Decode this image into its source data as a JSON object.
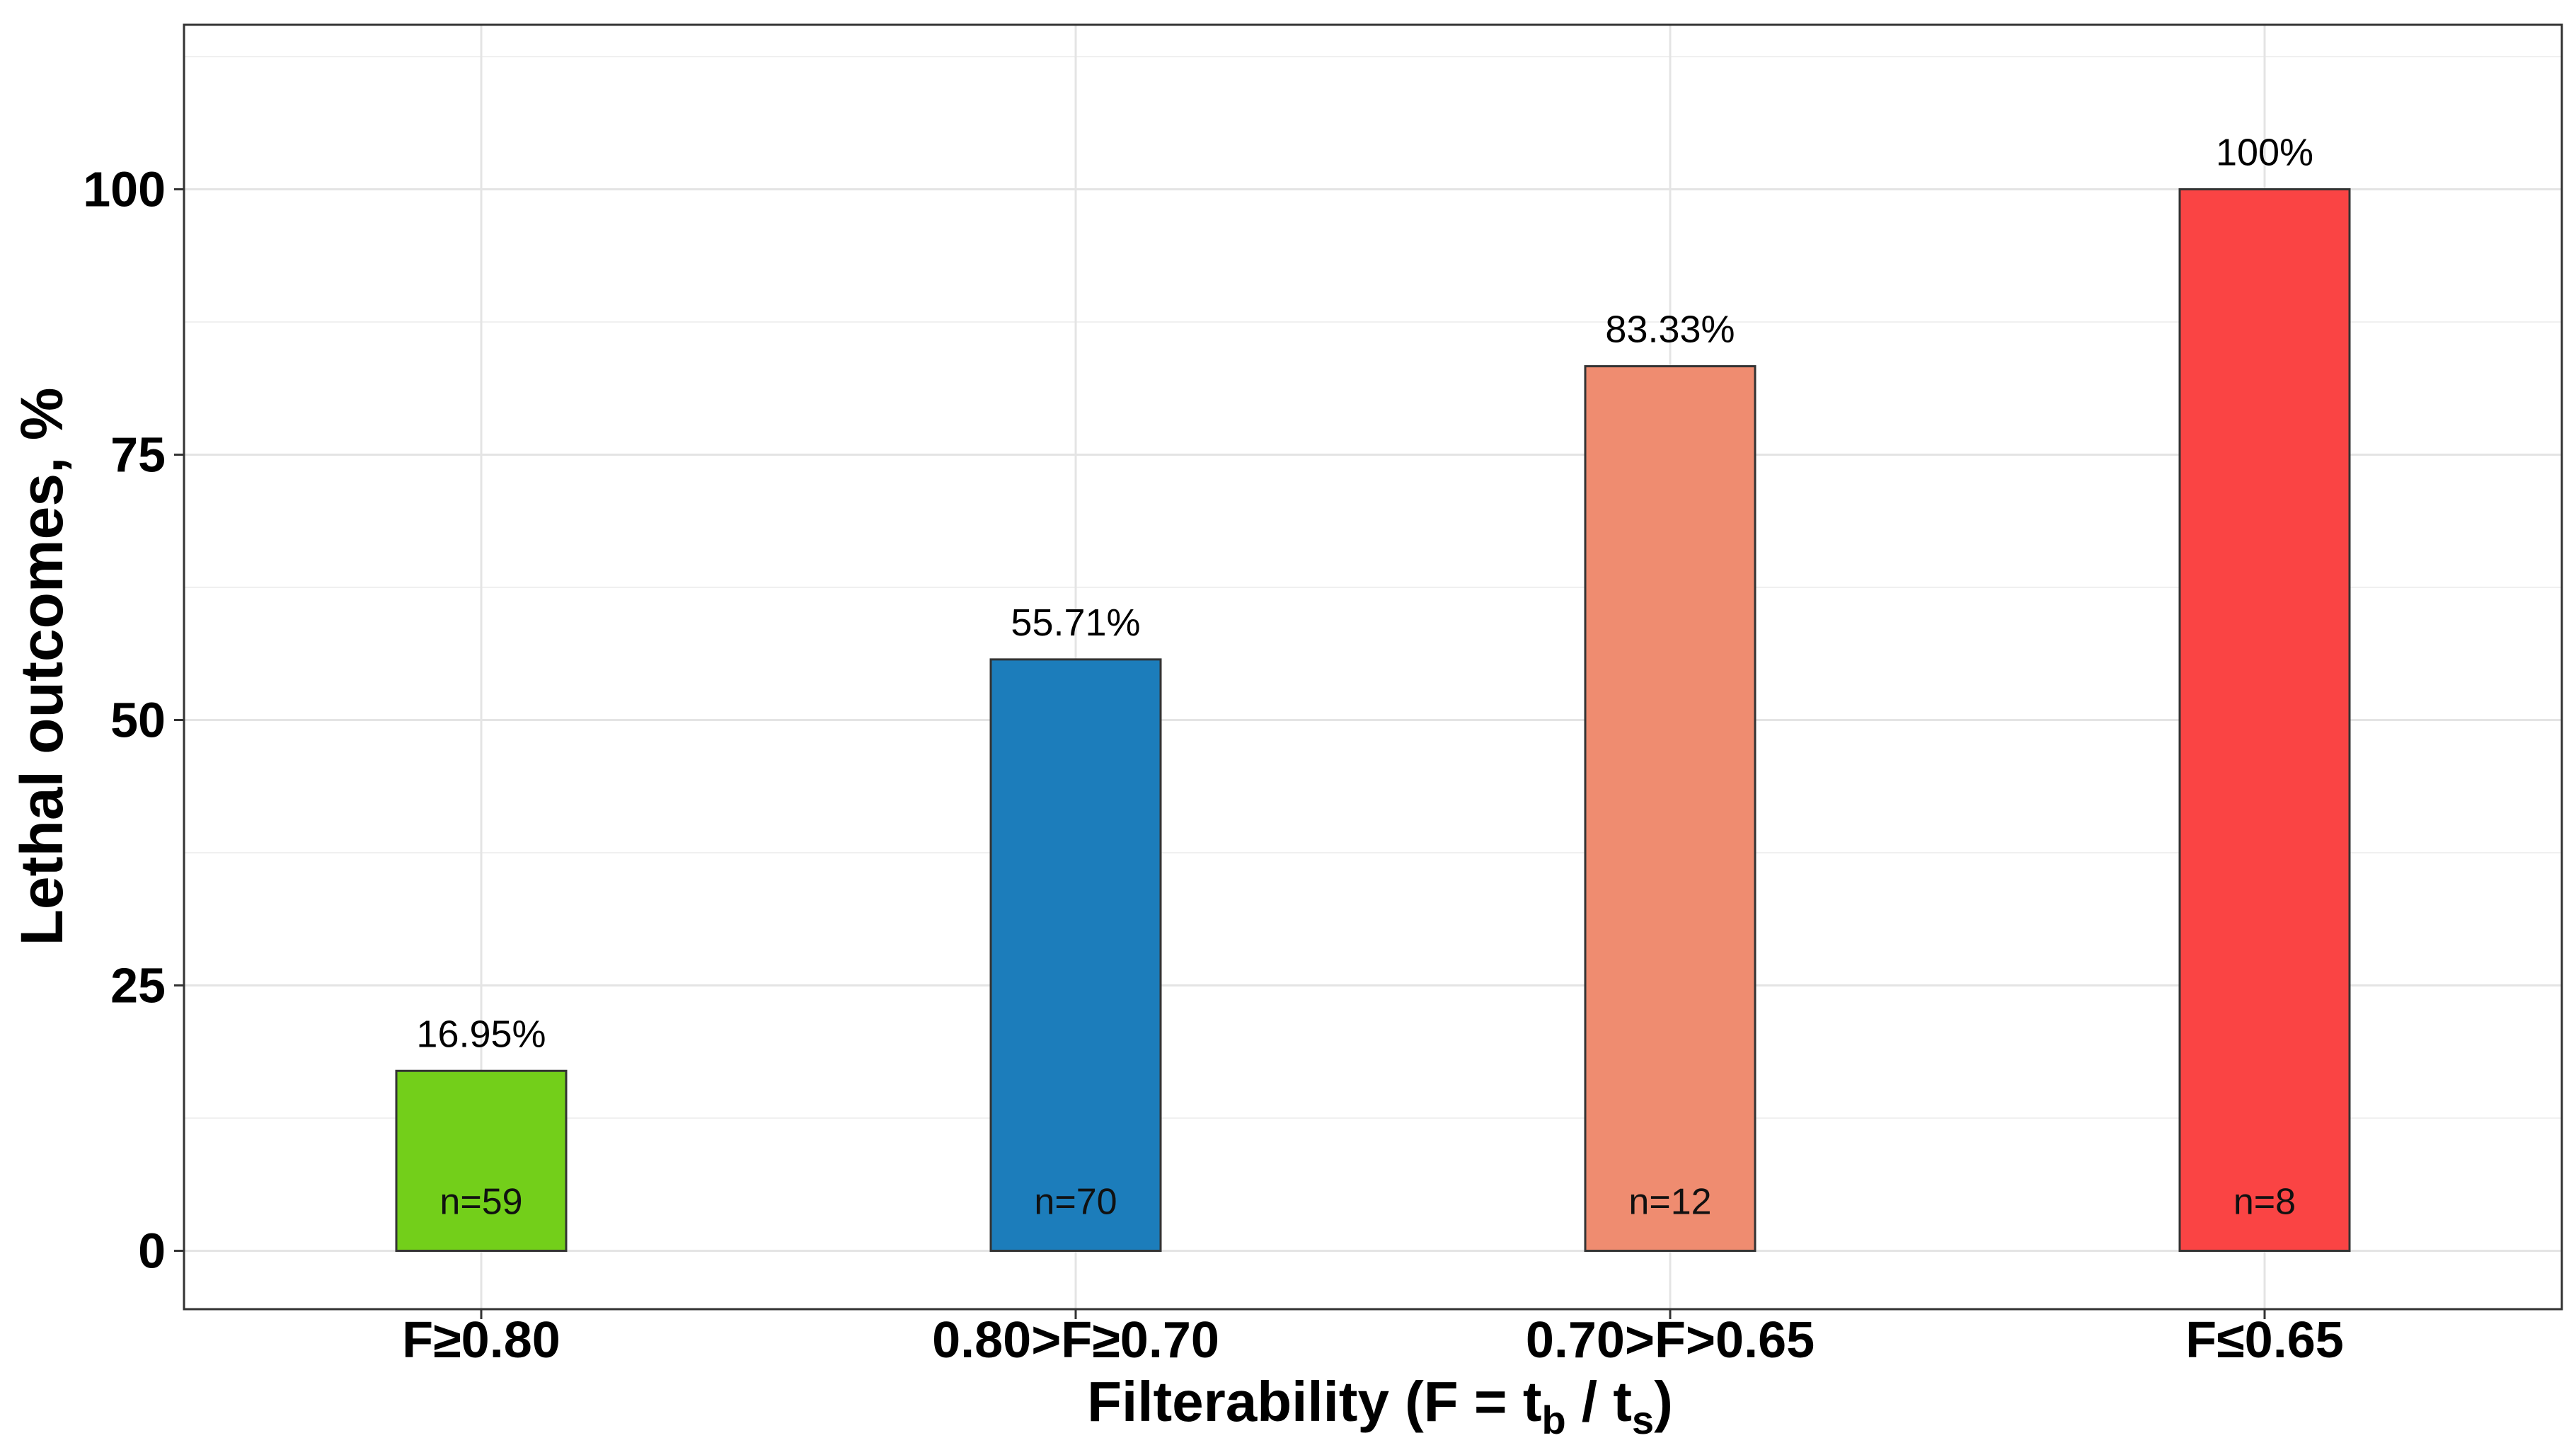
{
  "chart_data": {
    "type": "bar",
    "categories": [
      "F≥0.80",
      "0.80>F≥0.70",
      "0.70>F>0.65",
      "F≤0.65"
    ],
    "values": [
      16.95,
      55.71,
      83.33,
      100
    ],
    "value_labels": [
      "16.95%",
      "55.71%",
      "83.33%",
      "100%"
    ],
    "n_labels": [
      "n=59",
      "n=70",
      "n=12",
      "n=8"
    ],
    "colors": [
      "#73CF1A",
      "#1C7DBB",
      "#EF8C70",
      "#FA4444"
    ],
    "ylabel": "Lethal outcomes, %",
    "xlabel": {
      "prefix": "Filterability (F = t",
      "sub1": "b",
      "middle": " / t",
      "sub2": "s",
      "suffix": ")"
    },
    "ylim": [
      -5.5,
      115.5
    ],
    "yticks": [
      0,
      25,
      50,
      75,
      100
    ],
    "ytick_labels": [
      "0",
      "25",
      "50",
      "75",
      "100"
    ],
    "grid": true,
    "legend": "none"
  }
}
